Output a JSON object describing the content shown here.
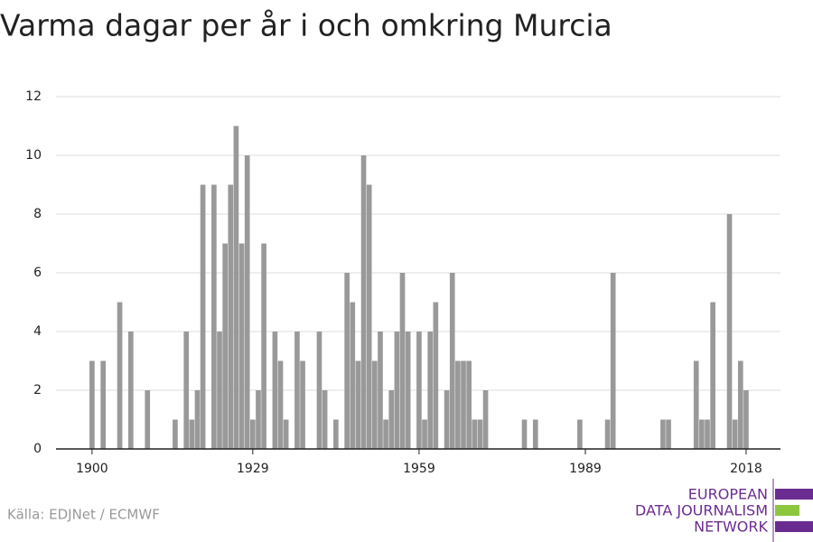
{
  "chart_data": {
    "type": "bar",
    "title": "Varma dagar per år i och omkring Murcia",
    "x": [
      1900,
      1902,
      1905,
      1907,
      1910,
      1915,
      1917,
      1918,
      1919,
      1920,
      1922,
      1923,
      1924,
      1925,
      1926,
      1927,
      1928,
      1929,
      1930,
      1931,
      1933,
      1934,
      1935,
      1937,
      1938,
      1941,
      1942,
      1944,
      1946,
      1947,
      1948,
      1949,
      1950,
      1951,
      1952,
      1953,
      1954,
      1955,
      1956,
      1957,
      1959,
      1960,
      1961,
      1962,
      1964,
      1965,
      1966,
      1967,
      1968,
      1969,
      1970,
      1971,
      1978,
      1980,
      1988,
      1993,
      1994,
      2003,
      2004,
      2009,
      2010,
      2011,
      2012,
      2015,
      2016,
      2017,
      2018
    ],
    "values": [
      3,
      3,
      5,
      4,
      2,
      1,
      4,
      1,
      2,
      9,
      9,
      4,
      7,
      9,
      11,
      7,
      10,
      1,
      2,
      7,
      4,
      3,
      1,
      4,
      3,
      4,
      2,
      1,
      6,
      5,
      3,
      10,
      9,
      3,
      4,
      1,
      2,
      4,
      6,
      4,
      4,
      1,
      4,
      5,
      2,
      6,
      3,
      3,
      3,
      1,
      1,
      2,
      1,
      1,
      1,
      1,
      6,
      1,
      1,
      3,
      1,
      1,
      5,
      8,
      1,
      3,
      2
    ],
    "color": "#999999",
    "xlim": [
      1893.5,
      2024.2
    ],
    "xticks": [
      1900,
      1929,
      1959,
      1989,
      2018
    ],
    "ylim": [
      0,
      12
    ],
    "yticks": [
      0,
      2,
      4,
      6,
      8,
      10,
      12
    ],
    "grid": true,
    "source": "Källa: EDJNet / ECMWF",
    "logo": [
      "EUROPEAN",
      "DATA JOURNALISM",
      "NETWORK"
    ]
  }
}
